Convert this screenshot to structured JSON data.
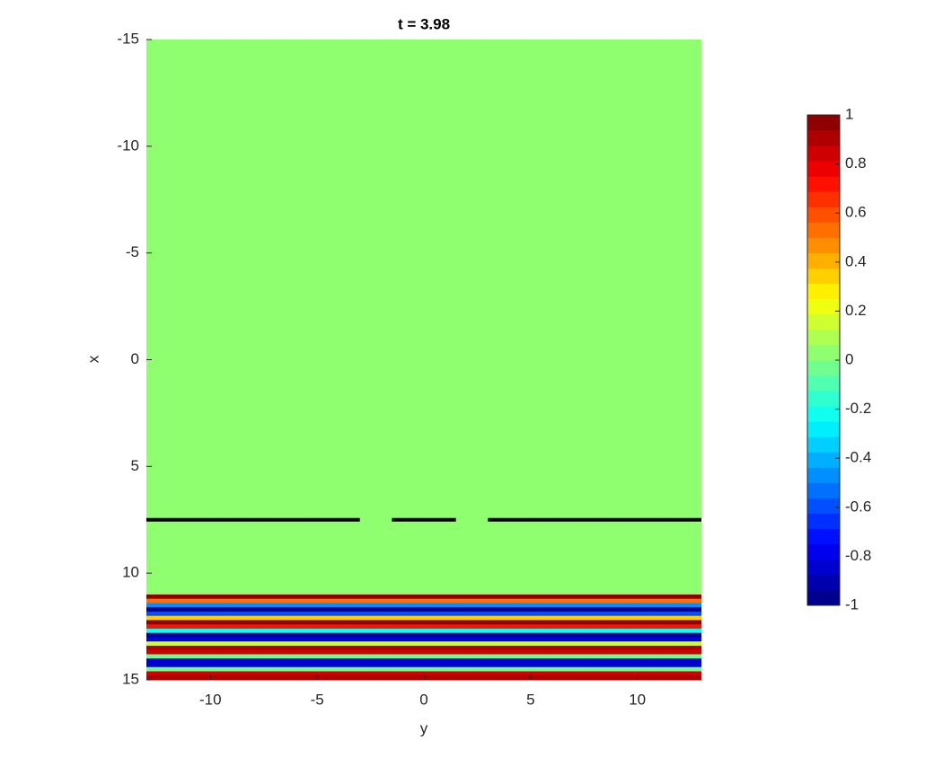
{
  "chart_data": {
    "type": "heatmap",
    "title": "t = 3.98",
    "x_label": "y",
    "y_label": "x",
    "xlim": [
      -13,
      13
    ],
    "xticks": [
      -10,
      -5,
      0,
      5,
      10
    ],
    "ylim": [
      -15,
      15
    ],
    "yticks": [
      -15,
      -10,
      -5,
      0,
      5,
      10,
      15
    ],
    "y_reversed": true,
    "row_edges": [
      -15,
      11.0,
      11.2,
      11.4,
      11.6,
      11.8,
      12.0,
      12.2,
      12.4,
      12.6,
      12.8,
      13.0,
      13.2,
      13.4,
      13.6,
      13.8,
      14.0,
      14.2,
      14.4,
      14.6,
      14.8,
      15.0
    ],
    "values": [
      0,
      1,
      0.53,
      -0.44,
      -0.99,
      -0.62,
      0.34,
      0.98,
      0.69,
      -0.24,
      -0.95,
      -0.77,
      0.16,
      0.92,
      0.82,
      -0.05,
      -0.87,
      -0.87,
      -0.05,
      0.82,
      0.92
    ],
    "colormap": "jet",
    "color_levels": 32,
    "clim": [
      -1,
      1
    ],
    "colorbar_ticks": [
      -1,
      -0.8,
      -0.6,
      -0.4,
      -0.2,
      0,
      0.2,
      0.4,
      0.6,
      0.8,
      1
    ],
    "barriers": {
      "x": 7.5,
      "y_ranges": [
        [
          -13,
          -3
        ],
        [
          -1.5,
          1.5
        ],
        [
          3,
          13
        ]
      ],
      "color": "#000000"
    }
  }
}
